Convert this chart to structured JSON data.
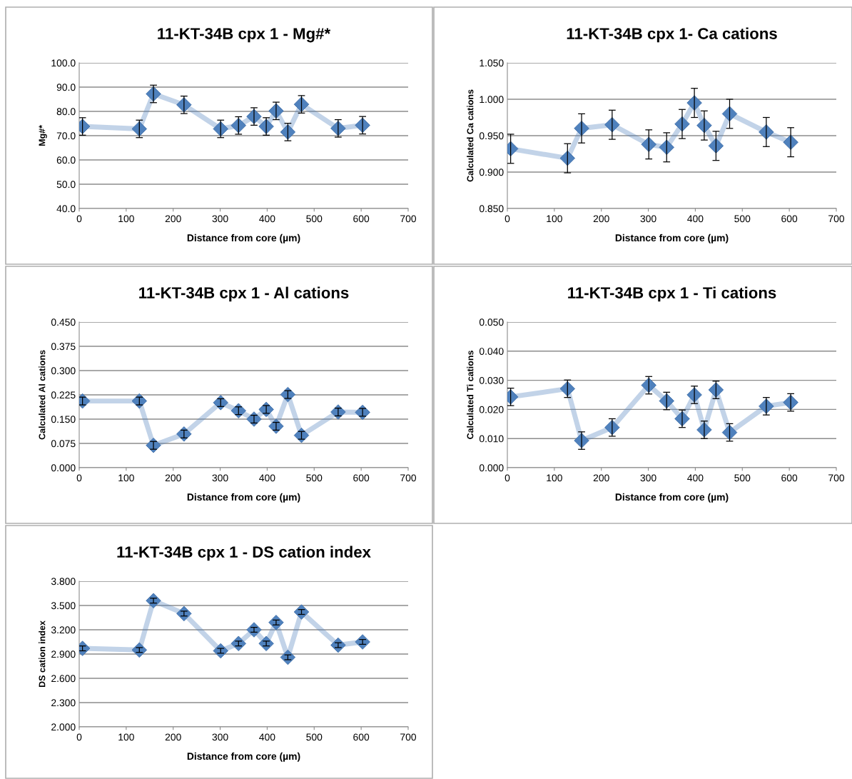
{
  "chart_data": [
    {
      "type": "line",
      "title": "11-KT-34B cpx 1 - Mg#*",
      "xlabel": "Distance from core (µm)",
      "ylabel": "Mg#*",
      "x": [
        7,
        128,
        158,
        223,
        301,
        339,
        372,
        398,
        419,
        444,
        473,
        551,
        603
      ],
      "xlim": [
        0,
        700
      ],
      "xticks": [
        0,
        100,
        200,
        300,
        400,
        500,
        600,
        700
      ],
      "ylim": [
        40,
        100
      ],
      "yticks": [
        {
          "value": 40,
          "label": "40.0"
        },
        {
          "value": 50,
          "label": "50.0"
        },
        {
          "value": 60,
          "label": "60.0"
        },
        {
          "value": 70,
          "label": "70.0"
        },
        {
          "value": 80,
          "label": "80.0"
        },
        {
          "value": 90,
          "label": "90.0"
        },
        {
          "value": 100,
          "label": "100.0"
        }
      ],
      "grid": "y",
      "marker": "diamond",
      "line_style": "solid",
      "series": [
        {
          "color": "#4f81bd",
          "values": [
            73.8,
            72.8,
            87.2,
            82.7,
            72.8,
            74.2,
            77.9,
            73.8,
            80.2,
            71.5,
            82.9,
            73.0,
            74.3
          ],
          "errors": [
            3.6,
            3.6,
            3.6,
            3.6,
            3.6,
            3.6,
            3.6,
            3.6,
            3.6,
            3.6,
            3.6,
            3.6,
            3.6
          ]
        }
      ]
    },
    {
      "type": "line",
      "title": "11-KT-34B cpx 1- Ca cations",
      "xlabel": "Distance from core (µm)",
      "ylabel": "Calculated Ca cations",
      "x": [
        7,
        128,
        158,
        223,
        301,
        339,
        372,
        398,
        419,
        444,
        473,
        551,
        603
      ],
      "xlim": [
        0,
        700
      ],
      "xticks": [
        0,
        100,
        200,
        300,
        400,
        500,
        600,
        700
      ],
      "ylim": [
        0.85,
        1.05
      ],
      "yticks": [
        {
          "value": 0.85,
          "label": "0.850"
        },
        {
          "value": 0.9,
          "label": "0.900"
        },
        {
          "value": 0.95,
          "label": "0.950"
        },
        {
          "value": 1.0,
          "label": "1.000"
        },
        {
          "value": 1.05,
          "label": "1.050"
        }
      ],
      "grid": "y",
      "marker": "diamond",
      "line_style": "solid",
      "series": [
        {
          "color": "#4f81bd",
          "values": [
            0.932,
            0.919,
            0.96,
            0.965,
            0.938,
            0.934,
            0.966,
            0.995,
            0.964,
            0.936,
            0.98,
            0.955,
            0.941
          ],
          "errors": [
            0.02,
            0.02,
            0.02,
            0.02,
            0.02,
            0.02,
            0.02,
            0.02,
            0.02,
            0.02,
            0.02,
            0.02,
            0.02
          ]
        }
      ]
    },
    {
      "type": "line",
      "title": "11-KT-34B cpx 1 - Al cations",
      "xlabel": "Distance from core (µm)",
      "ylabel": "Calculated Al cations",
      "x": [
        7,
        128,
        158,
        223,
        301,
        339,
        372,
        398,
        419,
        444,
        473,
        551,
        603
      ],
      "xlim": [
        0,
        700
      ],
      "xticks": [
        0,
        100,
        200,
        300,
        400,
        500,
        600,
        700
      ],
      "ylim": [
        0,
        0.45
      ],
      "yticks": [
        {
          "value": 0,
          "label": "0.000"
        },
        {
          "value": 0.075,
          "label": "0.075"
        },
        {
          "value": 0.15,
          "label": "0.150"
        },
        {
          "value": 0.225,
          "label": "0.225"
        },
        {
          "value": 0.3,
          "label": "0.300"
        },
        {
          "value": 0.375,
          "label": "0.375"
        },
        {
          "value": 0.45,
          "label": "0.450"
        }
      ],
      "grid": "y",
      "marker": "diamond",
      "line_style": "solid",
      "series": [
        {
          "color": "#4f81bd",
          "values": [
            0.206,
            0.206,
            0.069,
            0.104,
            0.201,
            0.176,
            0.15,
            0.18,
            0.128,
            0.226,
            0.1,
            0.172,
            0.171
          ],
          "errors": [
            0.012,
            0.012,
            0.012,
            0.012,
            0.012,
            0.012,
            0.012,
            0.012,
            0.012,
            0.012,
            0.012,
            0.012,
            0.012
          ]
        }
      ]
    },
    {
      "type": "line",
      "title": "11-KT-34B cpx 1 - Ti cations",
      "xlabel": "Distance from core (µm)",
      "ylabel": "Calculated Ti cations",
      "x": [
        7,
        128,
        158,
        223,
        301,
        339,
        372,
        398,
        419,
        444,
        473,
        551,
        603
      ],
      "xlim": [
        0,
        700
      ],
      "xticks": [
        0,
        100,
        200,
        300,
        400,
        500,
        600,
        700
      ],
      "ylim": [
        0,
        0.05
      ],
      "yticks": [
        {
          "value": 0,
          "label": "0.000"
        },
        {
          "value": 0.01,
          "label": "0.010"
        },
        {
          "value": 0.02,
          "label": "0.020"
        },
        {
          "value": 0.03,
          "label": "0.030"
        },
        {
          "value": 0.04,
          "label": "0.040"
        },
        {
          "value": 0.05,
          "label": "0.050"
        }
      ],
      "grid": "y",
      "marker": "diamond",
      "line_style": "solid",
      "series": [
        {
          "color": "#4f81bd",
          "values": [
            0.0243,
            0.0271,
            0.0093,
            0.0138,
            0.0283,
            0.0229,
            0.0168,
            0.025,
            0.013,
            0.0267,
            0.0121,
            0.0211,
            0.0224
          ],
          "errors": [
            0.003,
            0.003,
            0.003,
            0.003,
            0.003,
            0.003,
            0.003,
            0.003,
            0.003,
            0.003,
            0.003,
            0.003,
            0.003
          ]
        }
      ]
    },
    {
      "type": "line",
      "title": "11-KT-34B cpx 1 - DS cation index",
      "xlabel": "Distance from core (µm)",
      "ylabel": "DS cation index",
      "x": [
        7,
        128,
        158,
        223,
        301,
        339,
        372,
        398,
        419,
        444,
        473,
        551,
        603
      ],
      "xlim": [
        0,
        700
      ],
      "xticks": [
        0,
        100,
        200,
        300,
        400,
        500,
        600,
        700
      ],
      "ylim": [
        2.0,
        3.8
      ],
      "yticks": [
        {
          "value": 2.0,
          "label": "2.000"
        },
        {
          "value": 2.3,
          "label": "2.300"
        },
        {
          "value": 2.6,
          "label": "2.600"
        },
        {
          "value": 2.9,
          "label": "2.900"
        },
        {
          "value": 3.2,
          "label": "3.200"
        },
        {
          "value": 3.5,
          "label": "3.500"
        },
        {
          "value": 3.8,
          "label": "3.800"
        }
      ],
      "grid": "y",
      "marker": "diamond",
      "line_style": "solid",
      "series": [
        {
          "color": "#4f81bd",
          "values": [
            2.97,
            2.95,
            3.56,
            3.4,
            2.94,
            3.03,
            3.2,
            3.03,
            3.29,
            2.86,
            3.42,
            3.01,
            3.05
          ],
          "errors": [
            0.03,
            0.03,
            0.03,
            0.03,
            0.03,
            0.03,
            0.03,
            0.03,
            0.03,
            0.03,
            0.03,
            0.03,
            0.03
          ]
        }
      ]
    }
  ]
}
